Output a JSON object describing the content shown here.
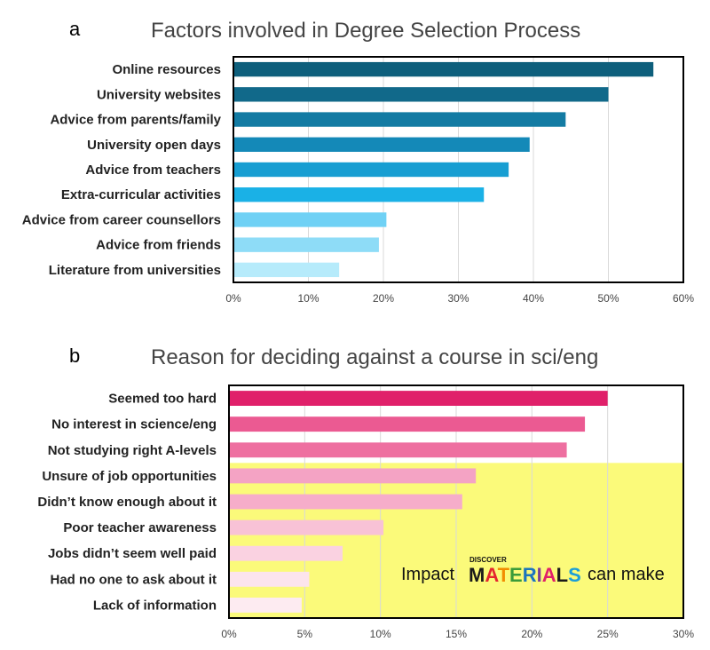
{
  "chart_data": [
    {
      "type": "bar",
      "orientation": "horizontal",
      "panel_letter": "a",
      "title": "Factors involved in Degree Selection Process",
      "categories": [
        "Online resources",
        "University websites",
        "Advice from parents/family",
        "University open days",
        "Advice from teachers",
        "Extra-curricular activities",
        "Advice from career counsellors",
        "Advice from friends",
        "Literature from universities"
      ],
      "values": [
        56,
        50,
        44.3,
        39.5,
        36.7,
        33.4,
        20.4,
        19.4,
        14.1
      ],
      "colors": [
        "#0e5f7c",
        "#11698a",
        "#137ba3",
        "#1489b8",
        "#179ed2",
        "#1ab1e6",
        "#6fd1f5",
        "#8edcf7",
        "#b6ebfb"
      ],
      "xlim": [
        0,
        60
      ],
      "xticks": [
        "0%",
        "10%",
        "20%",
        "30%",
        "40%",
        "50%",
        "60%"
      ],
      "grid": true,
      "xlabel": "",
      "ylabel": ""
    },
    {
      "type": "bar",
      "orientation": "horizontal",
      "panel_letter": "b",
      "title": "Reason for deciding against a course in sci/eng",
      "categories": [
        "Seemed too hard",
        "No interest in science/eng",
        "Not studying right  A-levels",
        "Unsure of job opportunities",
        "Didn’t know enough about it",
        "Poor teacher awareness",
        "Jobs didn’t seem well paid",
        "Had no one to ask about it",
        "Lack of information"
      ],
      "values": [
        25,
        23.5,
        22.3,
        16.3,
        15.4,
        10.2,
        7.5,
        5.3,
        4.8
      ],
      "colors": [
        "#e0206a",
        "#eb5a92",
        "#ee6fa0",
        "#f4a3c4",
        "#f6adca",
        "#f8c2d6",
        "#fad2e1",
        "#fce4ed",
        "#fdebf1"
      ],
      "xlim": [
        0,
        30
      ],
      "xticks": [
        "0%",
        "5%",
        "10%",
        "15%",
        "20%",
        "25%",
        "30%"
      ],
      "grid": true,
      "xlabel": "",
      "ylabel": "",
      "highlight": {
        "from_category": "Unsure of job opportunities",
        "color": "#fbfa7a",
        "annotation_prefix": "Impact",
        "logo_small": "DISCOVER",
        "logo_big": "MATERIALS",
        "annotation_suffix": "can make"
      }
    }
  ]
}
